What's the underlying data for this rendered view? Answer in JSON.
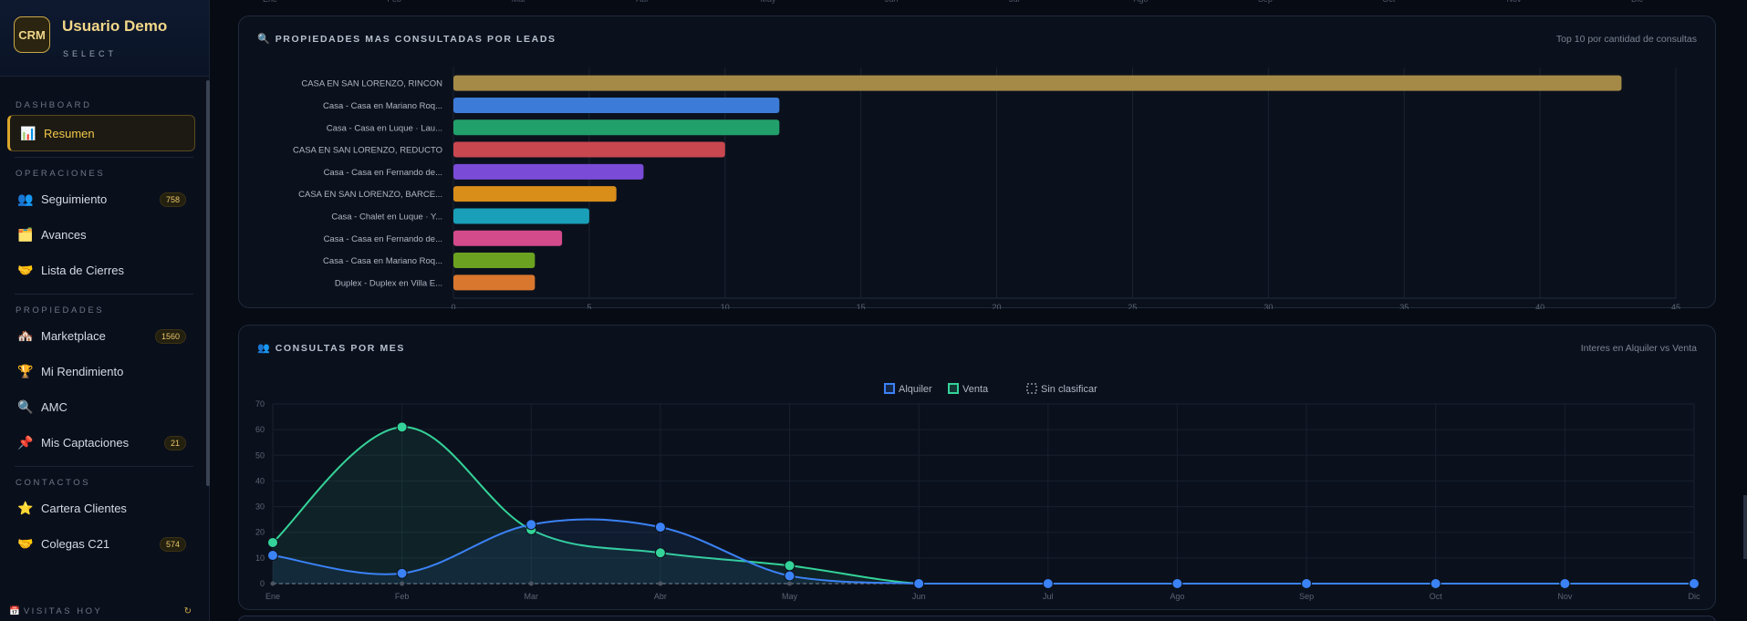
{
  "brand": {
    "logo": "CRM",
    "name": "Usuario Demo",
    "subtitle": "SELECT"
  },
  "sidebar": {
    "sections": [
      {
        "title": "DASHBOARD",
        "items": [
          {
            "label": "Resumen",
            "icon": "📊",
            "icon_name": "chart-icon",
            "active": true
          }
        ]
      },
      {
        "title": "OPERACIONES",
        "items": [
          {
            "label": "Seguimiento",
            "icon": "👥",
            "icon_name": "users-icon",
            "badge": "758"
          },
          {
            "label": "Avances",
            "icon": "🗂️",
            "icon_name": "folder-icon"
          },
          {
            "label": "Lista de Cierres",
            "icon": "🤝",
            "icon_name": "handshake-icon"
          }
        ]
      },
      {
        "title": "PROPIEDADES",
        "items": [
          {
            "label": "Marketplace",
            "icon": "🏘️",
            "icon_name": "houses-icon",
            "badge": "1560"
          },
          {
            "label": "Mi Rendimiento",
            "icon": "🏆",
            "icon_name": "trophy-icon"
          },
          {
            "label": "AMC",
            "icon": "🔍",
            "icon_name": "magnifier-icon"
          },
          {
            "label": "Mis Captaciones",
            "icon": "📌",
            "icon_name": "pin-icon",
            "badge": "21"
          }
        ]
      },
      {
        "title": "CONTACTOS",
        "items": [
          {
            "label": "Cartera Clientes",
            "icon": "⭐",
            "icon_name": "star-icon"
          },
          {
            "label": "Colegas C21",
            "icon": "🤝",
            "icon_name": "handshake-icon",
            "badge": "574"
          }
        ]
      }
    ],
    "footer": {
      "label": "VISITAS HOY",
      "icon": "📅",
      "refresh": "↻"
    }
  },
  "top_axis_months": [
    "Ene",
    "Feb",
    "Mar",
    "Abr",
    "May",
    "Jun",
    "Jul",
    "Ago",
    "Sep",
    "Oct",
    "Nov",
    "Dic"
  ],
  "card1": {
    "icon": "🔍",
    "title": "PROPIEDADES MAS CONSULTADAS POR LEADS",
    "subtitle": "Top 10 por cantidad de consultas"
  },
  "card2": {
    "icon": "👥",
    "title": "CONSULTAS POR MES",
    "subtitle": "Interes en Alquiler vs Venta"
  },
  "chart_data": [
    {
      "type": "bar",
      "orientation": "horizontal",
      "categories": [
        "CASA EN SAN LORENZO, RINCON",
        "Casa - Casa en Mariano Roq...",
        "Casa - Casa en Luque · Lau...",
        "CASA EN SAN LORENZO, REDUCTO",
        "Casa - Casa en Fernando de...",
        "CASA EN SAN LORENZO, BARCE...",
        "Casa - Chalet en Luque · Y...",
        "Casa - Casa en Fernando de...",
        "Casa - Casa en Mariano Roq...",
        "Duplex - Duplex en Villa E..."
      ],
      "values": [
        43,
        12,
        12,
        10,
        7,
        6,
        5,
        4,
        3,
        3
      ],
      "colors": [
        "#a48a46",
        "#3d7bd8",
        "#22a06b",
        "#c9474f",
        "#7a4bd6",
        "#d98e1a",
        "#1a9fb8",
        "#d44b8c",
        "#6ba320",
        "#d9772e"
      ],
      "xlim": [
        0,
        45
      ],
      "xticks": [
        0,
        5,
        10,
        15,
        20,
        25,
        30,
        35,
        40,
        45
      ],
      "grid": true
    },
    {
      "type": "line",
      "x": [
        "Ene",
        "Feb",
        "Mar",
        "Abr",
        "May",
        "Jun",
        "Jul",
        "Ago",
        "Sep",
        "Oct",
        "Nov",
        "Dic"
      ],
      "series": [
        {
          "name": "Alquiler",
          "color": "#3b82f6",
          "values": [
            11,
            4,
            23,
            22,
            3,
            0,
            0,
            0,
            0,
            0,
            0,
            0
          ]
        },
        {
          "name": "Venta",
          "color": "#34d399",
          "values": [
            16,
            61,
            21,
            12,
            7,
            0,
            0,
            0,
            0,
            0,
            0,
            0
          ]
        },
        {
          "name": "Sin clasificar",
          "color": "#6b7280",
          "values": [
            0,
            0,
            0,
            0,
            0,
            0,
            0,
            0,
            0,
            0,
            0,
            0
          ]
        }
      ],
      "ylim": [
        0,
        70
      ],
      "yticks": [
        0,
        10,
        20,
        30,
        40,
        50,
        60,
        70
      ],
      "legend": "top-center",
      "grid": true
    }
  ]
}
